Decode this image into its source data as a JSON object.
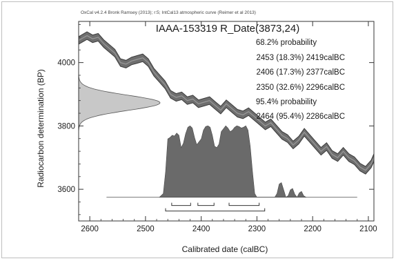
{
  "chart_data": {
    "type": "line",
    "credit": "OxCal v4.2.4 Bronk Ramsey (2013); r:5; IntCal13 atmospheric curve (Reimer et al 2013)",
    "title": "IAAA-153319 R_Date(3873,24)",
    "xlabel": "Calibrated date (calBC)",
    "ylabel": "Radiocarbon determination (BP)",
    "xlim": [
      2620,
      2090
    ],
    "ylim": [
      3500,
      4130
    ],
    "x_ticks": [
      2600,
      2500,
      2400,
      2300,
      2200,
      2100
    ],
    "x_tick_labels": [
      "2600",
      "2500",
      "2400",
      "2300",
      "2200",
      "2100"
    ],
    "y_ticks": [
      3600,
      3800,
      4000
    ],
    "y_tick_labels": [
      "3600",
      "3800",
      "4000"
    ],
    "probability_text": [
      "68.2% probability",
      "2453 (18.3%) 2419calBC",
      "2406 (17.3%) 2377calBC",
      "2350 (32.6%) 2296calBC",
      "95.4% probability",
      "2464 (95.4%) 2286calBC"
    ],
    "calibration_curve": {
      "name": "IntCal13",
      "color": "#6e6e6e",
      "x": [
        2620,
        2605,
        2595,
        2585,
        2575,
        2565,
        2555,
        2545,
        2535,
        2525,
        2515,
        2505,
        2495,
        2485,
        2475,
        2465,
        2455,
        2445,
        2435,
        2425,
        2415,
        2405,
        2395,
        2385,
        2375,
        2365,
        2355,
        2345,
        2335,
        2325,
        2315,
        2305,
        2295,
        2285,
        2275,
        2265,
        2255,
        2245,
        2235,
        2225,
        2215,
        2205,
        2195,
        2185,
        2175,
        2165,
        2155,
        2145,
        2135,
        2125,
        2115,
        2105,
        2095,
        2090
      ],
      "y": [
        4070,
        4085,
        4075,
        4080,
        4060,
        4045,
        4030,
        4000,
        3995,
        4005,
        4010,
        4015,
        4000,
        3970,
        3950,
        3930,
        3900,
        3890,
        3895,
        3880,
        3885,
        3870,
        3875,
        3880,
        3865,
        3850,
        3870,
        3855,
        3840,
        3835,
        3845,
        3830,
        3815,
        3800,
        3810,
        3790,
        3770,
        3760,
        3740,
        3755,
        3780,
        3760,
        3740,
        3720,
        3735,
        3710,
        3700,
        3720,
        3700,
        3690,
        3670,
        3660,
        3680,
        3700
      ],
      "band": 12
    },
    "radiocarbon_distribution": {
      "mean": 3873,
      "sigma": 24,
      "color": "#c8c8c8"
    },
    "calibrated_distribution": {
      "color": "#6a6a6a",
      "baseline_y": 3575,
      "baseline_range": [
        2570,
        2120
      ],
      "x": [
        2475,
        2468,
        2464,
        2460,
        2456,
        2452,
        2448,
        2444,
        2440,
        2436,
        2432,
        2428,
        2424,
        2420,
        2416,
        2412,
        2408,
        2404,
        2400,
        2396,
        2392,
        2388,
        2384,
        2380,
        2376,
        2372,
        2368,
        2364,
        2360,
        2356,
        2352,
        2348,
        2344,
        2340,
        2336,
        2332,
        2328,
        2324,
        2320,
        2316,
        2312,
        2308,
        2304,
        2300,
        2296,
        2292,
        2288,
        2284,
        2280,
        2276,
        2272,
        2268,
        2264,
        2260,
        2256,
        2252,
        2248,
        2244,
        2240,
        2236,
        2232,
        2228,
        2224,
        2220,
        2216,
        2212
      ],
      "density": [
        0,
        0.05,
        0.35,
        0.8,
        0.82,
        0.85,
        0.84,
        0.88,
        0.85,
        0.68,
        0.74,
        0.87,
        0.96,
        0.98,
        0.95,
        0.82,
        0.72,
        0.76,
        0.8,
        0.92,
        0.97,
        0.98,
        0.96,
        0.85,
        0.7,
        0.68,
        0.73,
        0.9,
        0.94,
        0.98,
        0.95,
        0.9,
        0.92,
        0.96,
        0.98,
        0.97,
        0.95,
        0.96,
        0.98,
        0.92,
        0.7,
        0.35,
        0.05,
        0,
        0,
        0,
        0,
        0,
        0,
        0,
        0,
        0,
        0.05,
        0.18,
        0.2,
        0.1,
        0,
        0.02,
        0.1,
        0.12,
        0.04,
        0,
        0.06,
        0.08,
        0.02,
        0
      ]
    },
    "ranges_68": [
      [
        2453,
        2419
      ],
      [
        2406,
        2377
      ],
      [
        2350,
        2296
      ]
    ],
    "ranges_95": [
      [
        2464,
        2286
      ]
    ]
  }
}
